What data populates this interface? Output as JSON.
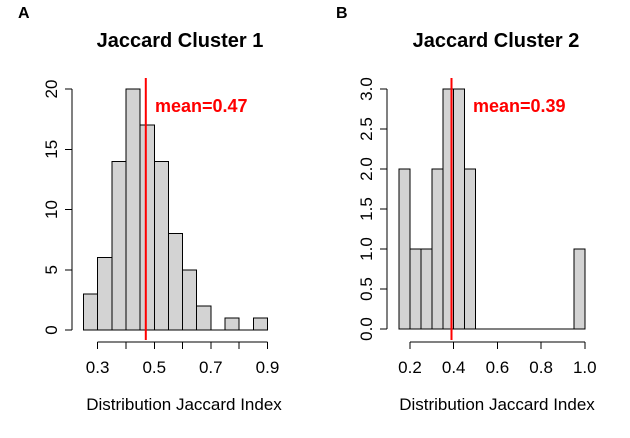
{
  "colors": {
    "background": "#ffffff",
    "bar_fill": "#d3d3d3",
    "bar_stroke": "#000000",
    "axis_color": "#000000",
    "accent_red": "#ff0000"
  },
  "chart_data": [
    {
      "type": "bar",
      "subtype": "histogram",
      "panel_label": "A",
      "title": "Jaccard Cluster 1",
      "xlabel": "Distribution Jaccard Index",
      "ylabel": "",
      "mean": 0.47,
      "mean_label": "mean=0.47",
      "bin_start": 0.25,
      "bin_width": 0.05,
      "counts": [
        3,
        6,
        14,
        20,
        17,
        14,
        8,
        5,
        2,
        0,
        1,
        0,
        1
      ],
      "bin_edges": [
        0.25,
        0.3,
        0.35,
        0.4,
        0.45,
        0.5,
        0.55,
        0.6,
        0.65,
        0.7,
        0.75,
        0.8,
        0.85,
        0.9
      ],
      "xlim": [
        0.25,
        0.9
      ],
      "ylim": [
        0,
        20
      ],
      "grid": false,
      "x_ticks": [
        {
          "v": 0.3,
          "label": "0.3"
        },
        {
          "v": 0.4,
          "label": ""
        },
        {
          "v": 0.5,
          "label": "0.5"
        },
        {
          "v": 0.6,
          "label": ""
        },
        {
          "v": 0.7,
          "label": "0.7"
        },
        {
          "v": 0.8,
          "label": ""
        },
        {
          "v": 0.9,
          "label": "0.9"
        }
      ],
      "y_ticks": [
        {
          "v": 0,
          "label": "0"
        },
        {
          "v": 5,
          "label": "5"
        },
        {
          "v": 10,
          "label": "10"
        },
        {
          "v": 15,
          "label": "15"
        },
        {
          "v": 20,
          "label": "20"
        }
      ]
    },
    {
      "type": "bar",
      "subtype": "histogram",
      "panel_label": "B",
      "title": "Jaccard Cluster 2",
      "xlabel": "Distribution Jaccard Index",
      "ylabel": "",
      "mean": 0.39,
      "mean_label": "mean=0.39",
      "bin_start": 0.15,
      "bin_width": 0.05,
      "counts": [
        2,
        1,
        1,
        2,
        3,
        3,
        2,
        0,
        0,
        0,
        0,
        0,
        0,
        0,
        0,
        0,
        1
      ],
      "bin_edges": [
        0.15,
        0.2,
        0.25,
        0.3,
        0.35,
        0.4,
        0.45,
        0.5,
        0.55,
        0.6,
        0.65,
        0.7,
        0.75,
        0.8,
        0.85,
        0.9,
        0.95,
        1.0
      ],
      "xlim": [
        0.15,
        1.0
      ],
      "ylim": [
        0,
        3
      ],
      "grid": false,
      "x_ticks": [
        {
          "v": 0.2,
          "label": "0.2"
        },
        {
          "v": 0.4,
          "label": "0.4"
        },
        {
          "v": 0.6,
          "label": "0.6"
        },
        {
          "v": 0.8,
          "label": "0.8"
        },
        {
          "v": 1.0,
          "label": "1.0"
        }
      ],
      "y_ticks": [
        {
          "v": 0.0,
          "label": "0.0"
        },
        {
          "v": 0.5,
          "label": "0.5"
        },
        {
          "v": 1.0,
          "label": "1.0"
        },
        {
          "v": 1.5,
          "label": "1.5"
        },
        {
          "v": 2.0,
          "label": "2.0"
        },
        {
          "v": 2.5,
          "label": "2.5"
        },
        {
          "v": 3.0,
          "label": "3.0"
        }
      ]
    }
  ]
}
